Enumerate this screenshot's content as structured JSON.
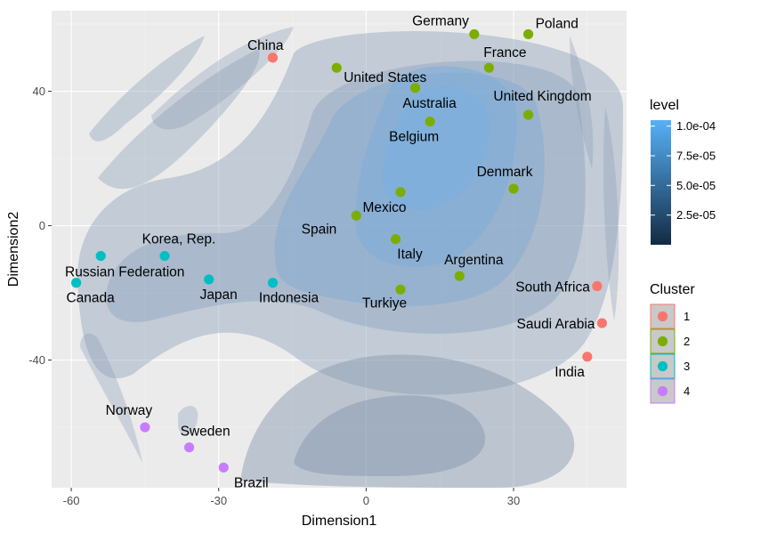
{
  "chart_data": {
    "type": "scatter",
    "xlabel": "Dimension1",
    "ylabel": "Dimension2",
    "xlim": [
      -64,
      53
    ],
    "ylim": [
      -78,
      64
    ],
    "x_ticks": [
      -60,
      -30,
      0,
      30
    ],
    "y_ticks": [
      40,
      0,
      -40
    ],
    "x_tick_labels": [
      "-60",
      "-30",
      "0",
      "30"
    ],
    "y_tick_labels": [
      "40",
      "0",
      "-40"
    ],
    "grid": true,
    "density_overlay": {
      "legend_title": "level",
      "legend_labels": [
        "1.0e-04",
        "7.5e-05",
        "5.0e-05",
        "2.5e-05"
      ],
      "legend_values": [
        0.0001,
        7.5e-05,
        5e-05,
        2.5e-05
      ],
      "color_low": "#132B43",
      "color_high": "#56B1F7",
      "max": 0.000105
    },
    "cluster_legend": {
      "title": "Cluster",
      "items": [
        {
          "label": "1",
          "color": "#F8766D"
        },
        {
          "label": "2",
          "color": "#7CAE00"
        },
        {
          "label": "3",
          "color": "#00BFC4"
        },
        {
          "label": "4",
          "color": "#C77CFF"
        }
      ]
    },
    "points": [
      {
        "label": "China",
        "x": -19,
        "y": 50,
        "cluster": "1"
      },
      {
        "label": "South Africa",
        "x": 47,
        "y": -18,
        "cluster": "1"
      },
      {
        "label": "Saudi Arabia",
        "x": 48,
        "y": -29,
        "cluster": "1"
      },
      {
        "label": "India",
        "x": 45,
        "y": -39,
        "cluster": "1"
      },
      {
        "label": "Germany",
        "x": 22,
        "y": 57,
        "cluster": "2"
      },
      {
        "label": "Poland",
        "x": 33,
        "y": 57,
        "cluster": "2"
      },
      {
        "label": "United States",
        "x": -6,
        "y": 47,
        "cluster": "2"
      },
      {
        "label": "France",
        "x": 25,
        "y": 47,
        "cluster": "2"
      },
      {
        "label": "Australia",
        "x": 10,
        "y": 41,
        "cluster": "2"
      },
      {
        "label": "United Kingdom",
        "x": 33,
        "y": 33,
        "cluster": "2"
      },
      {
        "label": "Belgium",
        "x": 13,
        "y": 31,
        "cluster": "2"
      },
      {
        "label": "Denmark",
        "x": 30,
        "y": 11,
        "cluster": "2"
      },
      {
        "label": "Mexico",
        "x": 7,
        "y": 10,
        "cluster": "2"
      },
      {
        "label": "Spain",
        "x": -2,
        "y": 3,
        "cluster": "2"
      },
      {
        "label": "Italy",
        "x": 6,
        "y": -4,
        "cluster": "2"
      },
      {
        "label": "Argentina",
        "x": 19,
        "y": -15,
        "cluster": "2"
      },
      {
        "label": "Turkiye",
        "x": 7,
        "y": -19,
        "cluster": "2"
      },
      {
        "label": "Korea, Rep.",
        "x": -41,
        "y": -9,
        "cluster": "3"
      },
      {
        "label": "Russian Federation",
        "x": -54,
        "y": -9,
        "cluster": "3"
      },
      {
        "label": "Canada",
        "x": -59,
        "y": -17,
        "cluster": "3"
      },
      {
        "label": "Japan",
        "x": -32,
        "y": -16,
        "cluster": "3"
      },
      {
        "label": "Indonesia",
        "x": -19,
        "y": -17,
        "cluster": "3"
      },
      {
        "label": "Norway",
        "x": -45,
        "y": -60,
        "cluster": "4"
      },
      {
        "label": "Sweden",
        "x": -36,
        "y": -66,
        "cluster": "4"
      },
      {
        "label": "Brazil",
        "x": -29,
        "y": -72,
        "cluster": "4"
      }
    ]
  }
}
